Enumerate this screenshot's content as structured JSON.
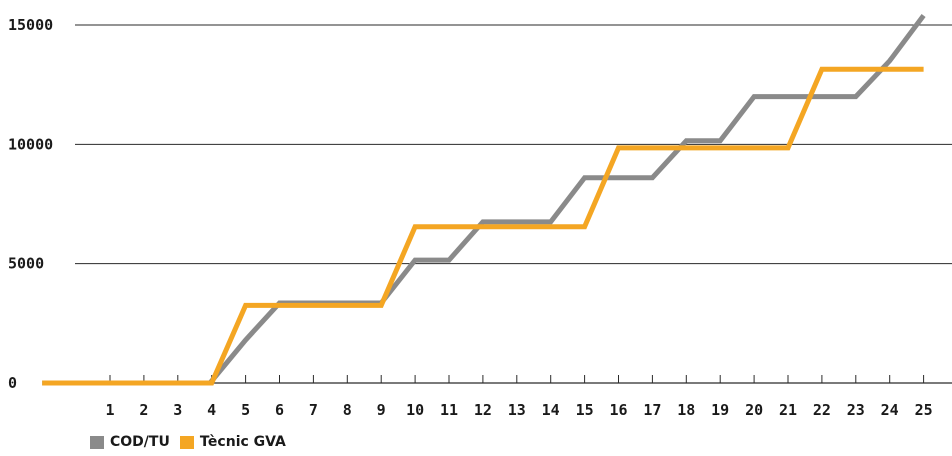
{
  "chart_data": {
    "type": "line",
    "title": "",
    "xlabel": "",
    "ylabel": "",
    "x_origin_label": "",
    "categories": [
      "1",
      "2",
      "3",
      "4",
      "5",
      "6",
      "7",
      "8",
      "9",
      "10",
      "11",
      "12",
      "13",
      "14",
      "15",
      "16",
      "17",
      "18",
      "19",
      "20",
      "21",
      "22",
      "23",
      "24",
      "25"
    ],
    "y_ticks": [
      0,
      5000,
      10000,
      15000
    ],
    "ylim": [
      0,
      16000
    ],
    "xlim": [
      -1,
      26
    ],
    "grid": "horizontal",
    "legend_position": "bottom-left",
    "series": [
      {
        "name": "COD/TU",
        "color": "#8a8a8a",
        "points": [
          [
            -1,
            0
          ],
          [
            3.95,
            0
          ],
          [
            5,
            1800
          ],
          [
            6,
            3350
          ],
          [
            9,
            3350
          ],
          [
            10,
            5150
          ],
          [
            11,
            5150
          ],
          [
            12,
            6750
          ],
          [
            14,
            6750
          ],
          [
            15,
            8600
          ],
          [
            17,
            8600
          ],
          [
            18,
            10150
          ],
          [
            19,
            10150
          ],
          [
            20,
            12000
          ],
          [
            23,
            12000
          ],
          [
            24,
            13500
          ],
          [
            25,
            15400
          ]
        ]
      },
      {
        "name": "Tècnic GVA",
        "color": "#f4a623",
        "points": [
          [
            -1,
            0
          ],
          [
            4,
            0
          ],
          [
            5,
            3250
          ],
          [
            9,
            3250
          ],
          [
            10,
            6550
          ],
          [
            15,
            6550
          ],
          [
            16,
            9850
          ],
          [
            21,
            9850
          ],
          [
            22,
            13150
          ],
          [
            25,
            13150
          ]
        ]
      }
    ]
  }
}
